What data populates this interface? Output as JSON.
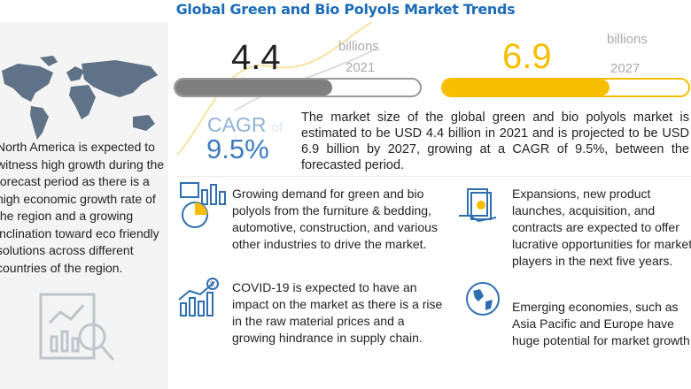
{
  "title": "Global Green and Bio Polyols Market Trends",
  "left_text": "North America is expected to witness high growth during the forecast period as there is a high economic growth rate of the region and a growing inclination toward eco friendly solutions across different countries of the region.",
  "market_2021": {
    "value": "4.4",
    "unit": "billions",
    "year": "2021",
    "bar_fill_percent": 64,
    "color": "#7f7f7f"
  },
  "market_2027": {
    "value": "6.9",
    "unit": "billions",
    "year": "2027",
    "bar_fill_percent": 68,
    "color": "#f7bd00"
  },
  "cagr": {
    "label": "CAGR",
    "of": "of",
    "value": "9.5%"
  },
  "summary": "The market size of the global green and bio polyols market is estimated to be USD 4.4 billion in 2021 and is projected to be USD 6.9 billion by 2027, growing at a CAGR of 9.5%, between the forecasted period.",
  "bullets": [
    {
      "icon": "demand-chart-icon",
      "text": "Growing demand for green and bio polyols from the furniture & bedding, automotive, construction, and various other industries to drive the market."
    },
    {
      "icon": "covid-price-chart-icon",
      "text": "COVID-19 is expected to have an impact on the market as there is a rise in the raw material prices and a growing hindrance in supply chain."
    },
    {
      "icon": "money-hand-icon",
      "text": "Expansions, new product launches, acquisition, and contracts are expected to offer lucrative opportunities for market players in the next five years."
    },
    {
      "icon": "globe-icon",
      "text": "Emerging economies, such as Asia Pacific and Europe have huge potential for market growth."
    }
  ]
}
